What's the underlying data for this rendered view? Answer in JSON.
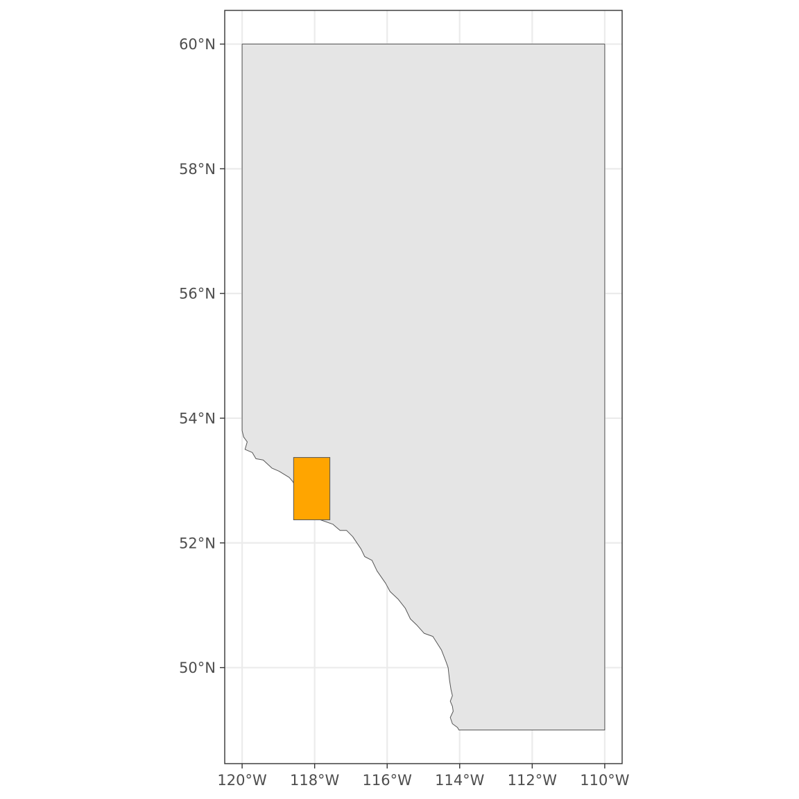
{
  "map": {
    "x_ticks": [
      {
        "value": -120,
        "label": "120°W"
      },
      {
        "value": -118,
        "label": "118°W"
      },
      {
        "value": -116,
        "label": "116°W"
      },
      {
        "value": -114,
        "label": "114°W"
      },
      {
        "value": -112,
        "label": "112°W"
      },
      {
        "value": -110,
        "label": "110°W"
      }
    ],
    "y_ticks": [
      {
        "value": 50,
        "label": "50°N"
      },
      {
        "value": 52,
        "label": "52°N"
      },
      {
        "value": 54,
        "label": "54°N"
      },
      {
        "value": 56,
        "label": "56°N"
      },
      {
        "value": 58,
        "label": "58°N"
      },
      {
        "value": 60,
        "label": "60°N"
      }
    ],
    "lon_range": [
      -120.48,
      -109.52
    ],
    "lat_range": [
      48.46,
      60.54
    ],
    "grid": true,
    "region": {
      "fill": "#e5e5e5",
      "stroke": "#555555",
      "boundary": [
        [
          -120,
          60
        ],
        [
          -110,
          60
        ],
        [
          -110,
          49
        ],
        [
          -114.02,
          49
        ],
        [
          -114.06,
          49.04
        ],
        [
          -114.2,
          49.1
        ],
        [
          -114.26,
          49.2
        ],
        [
          -114.18,
          49.3
        ],
        [
          -114.2,
          49.38
        ],
        [
          -114.26,
          49.46
        ],
        [
          -114.2,
          49.55
        ],
        [
          -114.24,
          49.65
        ],
        [
          -114.28,
          49.8
        ],
        [
          -114.32,
          50.0
        ],
        [
          -114.38,
          50.1
        ],
        [
          -114.5,
          50.28
        ],
        [
          -114.74,
          50.5
        ],
        [
          -114.98,
          50.55
        ],
        [
          -115.18,
          50.68
        ],
        [
          -115.36,
          50.78
        ],
        [
          -115.5,
          50.95
        ],
        [
          -115.7,
          51.1
        ],
        [
          -115.92,
          51.22
        ],
        [
          -116.04,
          51.35
        ],
        [
          -116.28,
          51.55
        ],
        [
          -116.42,
          51.72
        ],
        [
          -116.62,
          51.78
        ],
        [
          -116.72,
          51.9
        ],
        [
          -116.95,
          52.1
        ],
        [
          -117.12,
          52.2
        ],
        [
          -117.3,
          52.2
        ],
        [
          -117.5,
          52.3
        ],
        [
          -117.84,
          52.37
        ],
        [
          -118.18,
          52.5
        ],
        [
          -118.48,
          52.85
        ],
        [
          -118.6,
          52.98
        ],
        [
          -118.7,
          53.05
        ],
        [
          -118.98,
          53.15
        ],
        [
          -119.18,
          53.2
        ],
        [
          -119.42,
          53.33
        ],
        [
          -119.62,
          53.35
        ],
        [
          -119.72,
          53.45
        ],
        [
          -119.92,
          53.5
        ],
        [
          -119.86,
          53.62
        ],
        [
          -119.96,
          53.7
        ],
        [
          -120,
          53.8
        ],
        [
          -120,
          60
        ]
      ]
    },
    "highlight": {
      "fill": "#ffa500",
      "stroke": "#555555",
      "lon": [
        -118.58,
        -117.58
      ],
      "lat": [
        52.37,
        53.37
      ]
    }
  }
}
